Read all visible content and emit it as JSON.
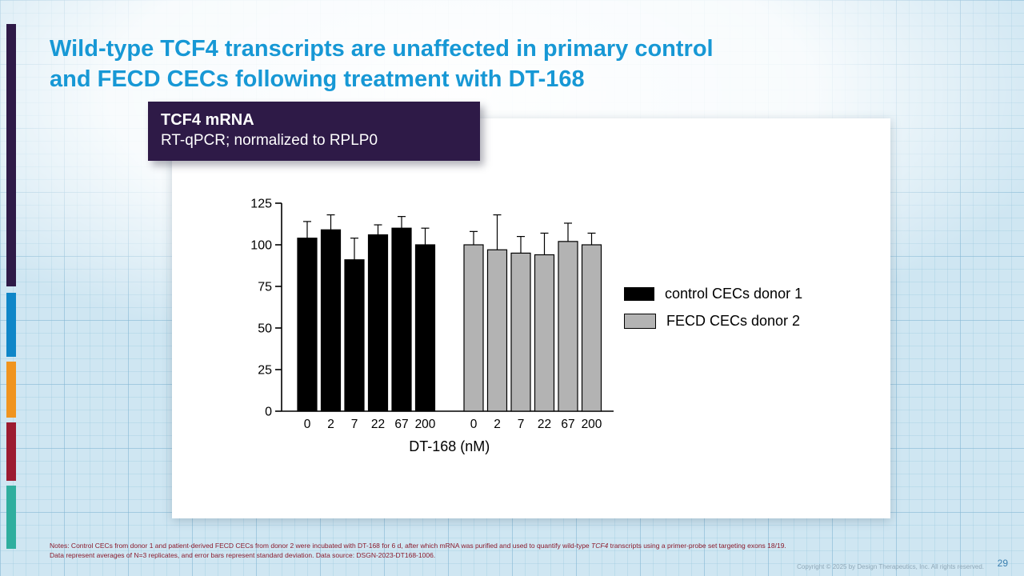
{
  "slide": {
    "title": "Wild-type TCF4 transcripts are unaffected in primary control and FECD CECs following treatment with DT-168",
    "page_number": "29",
    "copyright": "Copyright © 2025 by Design Therapeutics, Inc. All rights reserved."
  },
  "badge": {
    "title": "TCF4 mRNA",
    "subtitle": "RT-qPCR; normalized to RPLP0"
  },
  "notes": {
    "part1": "Notes: Control CECs from donor 1 and patient-derived FECD CECs from donor 2 were incubated with DT-168 for 6 d, after which mRNA was purified and used to quantify wild-type ",
    "gene": "TCF4",
    "part2": " transcripts using a primer-probe set targeting exons 18/19. Data represent averages of N=3 replicates, and error bars represent standard deviation. Data source: DSGN-2023-DT168-1006."
  },
  "chart_data": {
    "type": "bar",
    "title": "",
    "xlabel": "DT-168 (nM)",
    "ylabel": "",
    "ylim": [
      0,
      125
    ],
    "yticks": [
      0,
      25,
      50,
      75,
      100,
      125
    ],
    "categories": [
      "0",
      "2",
      "7",
      "22",
      "67",
      "200"
    ],
    "series": [
      {
        "name": "control CECs donor 1",
        "color": "#000000",
        "values": [
          104,
          109,
          91,
          106,
          110,
          100
        ],
        "errors": [
          10,
          9,
          13,
          6,
          7,
          10
        ]
      },
      {
        "name": "FECD CECs donor 2",
        "color": "#b3b3b3",
        "values": [
          100,
          97,
          95,
          94,
          102,
          100
        ],
        "errors": [
          8,
          21,
          10,
          13,
          11,
          7
        ]
      }
    ],
    "legend_position": "right",
    "grid": false
  },
  "colors": {
    "title_blue": "#1798d5",
    "badge_purple": "#2e1a47",
    "notes_red": "#8a1a2c",
    "stripe_purple": "#2e1a47",
    "stripe_blue": "#0f86c8",
    "stripe_orange": "#f0941f",
    "stripe_maroon": "#9c1b31",
    "stripe_teal": "#2fae9e",
    "bar_black": "#000000",
    "bar_gray": "#b3b3b3"
  }
}
